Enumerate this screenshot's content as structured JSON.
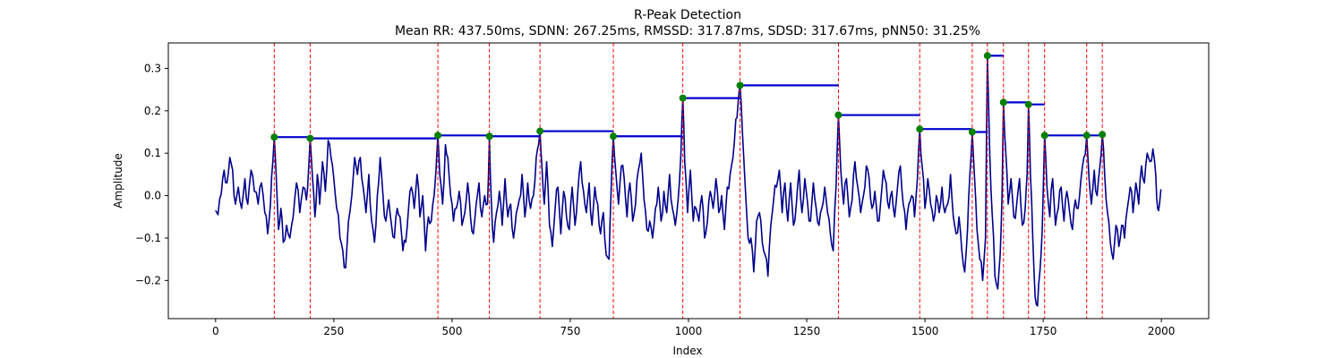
{
  "chart_data": {
    "type": "line",
    "title": "R-Peak Detection",
    "subtitle": "Mean RR: 437.50ms, SDNN: 267.25ms, RMSSD: 317.87ms, SDSD: 317.67ms, pNN50: 31.25%",
    "xlabel": "Index",
    "ylabel": "Amplitude",
    "xlim": [
      -100,
      2100
    ],
    "ylim": [
      -0.29,
      0.36
    ],
    "x_ticks": [
      0,
      250,
      500,
      750,
      1000,
      1250,
      1500,
      1750,
      2000
    ],
    "y_ticks": [
      -0.2,
      -0.1,
      0.0,
      0.1,
      0.2,
      0.3
    ],
    "y_tick_labels": [
      "−0.2",
      "−0.1",
      "0.0",
      "0.1",
      "0.2",
      "0.3"
    ],
    "grid": false,
    "signal": {
      "color": "#00008b",
      "length": 2000,
      "anchors": [
        [
          0,
          -0.035
        ],
        [
          5,
          -0.045
        ],
        [
          12,
          0.005
        ],
        [
          18,
          0.06
        ],
        [
          24,
          0.03
        ],
        [
          30,
          0.09
        ],
        [
          36,
          0.06
        ],
        [
          42,
          -0.02
        ],
        [
          48,
          0.02
        ],
        [
          55,
          -0.03
        ],
        [
          62,
          0.04
        ],
        [
          68,
          -0.02
        ],
        [
          75,
          0.06
        ],
        [
          82,
          0.01
        ],
        [
          90,
          -0.02
        ],
        [
          97,
          0.03
        ],
        [
          104,
          -0.04
        ],
        [
          110,
          -0.09
        ],
        [
          116,
          -0.02
        ],
        [
          121,
          0.08
        ],
        [
          124,
          0.138
        ],
        [
          128,
          0.05
        ],
        [
          133,
          -0.08
        ],
        [
          138,
          -0.03
        ],
        [
          143,
          -0.11
        ],
        [
          150,
          -0.07
        ],
        [
          157,
          -0.1
        ],
        [
          164,
          -0.05
        ],
        [
          171,
          0.03
        ],
        [
          178,
          -0.04
        ],
        [
          185,
          0.02
        ],
        [
          192,
          -0.01
        ],
        [
          197,
          0.07
        ],
        [
          200,
          0.135
        ],
        [
          205,
          0.04
        ],
        [
          210,
          -0.05
        ],
        [
          215,
          0.05
        ],
        [
          220,
          -0.02
        ],
        [
          226,
          0.08
        ],
        [
          232,
          0.01
        ],
        [
          238,
          0.13
        ],
        [
          244,
          0.09
        ],
        [
          250,
          0.04
        ],
        [
          256,
          -0.03
        ],
        [
          263,
          -0.1
        ],
        [
          269,
          -0.13
        ],
        [
          275,
          -0.17
        ],
        [
          281,
          -0.06
        ],
        [
          288,
          0.0
        ],
        [
          294,
          0.09
        ],
        [
          300,
          0.05
        ],
        [
          306,
          0.09
        ],
        [
          312,
          0.02
        ],
        [
          318,
          -0.04
        ],
        [
          324,
          0.05
        ],
        [
          330,
          -0.06
        ],
        [
          336,
          -0.11
        ],
        [
          342,
          0.0
        ],
        [
          348,
          0.09
        ],
        [
          354,
          0.0
        ],
        [
          360,
          -0.06
        ],
        [
          366,
          -0.01
        ],
        [
          372,
          -0.07
        ],
        [
          378,
          -0.1
        ],
        [
          384,
          -0.03
        ],
        [
          390,
          -0.05
        ],
        [
          396,
          -0.13
        ],
        [
          402,
          -0.11
        ],
        [
          408,
          -0.03
        ],
        [
          414,
          0.02
        ],
        [
          420,
          -0.03
        ],
        [
          426,
          0.05
        ],
        [
          432,
          -0.05
        ],
        [
          438,
          0.0
        ],
        [
          444,
          -0.13
        ],
        [
          450,
          -0.05
        ],
        [
          456,
          -0.06
        ],
        [
          462,
          0.0
        ],
        [
          466,
          0.06
        ],
        [
          470,
          0.142
        ],
        [
          474,
          0.05
        ],
        [
          480,
          -0.02
        ],
        [
          486,
          0.12
        ],
        [
          491,
          0.09
        ],
        [
          497,
          0.0
        ],
        [
          503,
          -0.06
        ],
        [
          509,
          -0.03
        ],
        [
          515,
          0.01
        ],
        [
          521,
          -0.07
        ],
        [
          527,
          -0.04
        ],
        [
          533,
          0.03
        ],
        [
          539,
          -0.05
        ],
        [
          545,
          -0.09
        ],
        [
          551,
          -0.02
        ],
        [
          557,
          0.03
        ],
        [
          563,
          -0.05
        ],
        [
          569,
          0.0
        ],
        [
          575,
          -0.02
        ],
        [
          579,
          0.14
        ],
        [
          583,
          -0.01
        ],
        [
          588,
          -0.11
        ],
        [
          594,
          -0.04
        ],
        [
          600,
          0.01
        ],
        [
          606,
          -0.07
        ],
        [
          612,
          0.04
        ],
        [
          618,
          -0.05
        ],
        [
          624,
          -0.02
        ],
        [
          630,
          -0.1
        ],
        [
          636,
          -0.04
        ],
        [
          642,
          -0.01
        ],
        [
          648,
          0.05
        ],
        [
          654,
          -0.05
        ],
        [
          660,
          0.03
        ],
        [
          666,
          -0.03
        ],
        [
          672,
          0.0
        ],
        [
          678,
          0.09
        ],
        [
          683,
          0.12
        ],
        [
          686,
          0.152
        ],
        [
          690,
          0.07
        ],
        [
          695,
          -0.02
        ],
        [
          700,
          0.08
        ],
        [
          706,
          -0.07
        ],
        [
          712,
          -0.12
        ],
        [
          718,
          -0.03
        ],
        [
          724,
          0.02
        ],
        [
          730,
          -0.09
        ],
        [
          736,
          0.01
        ],
        [
          742,
          -0.05
        ],
        [
          748,
          -0.08
        ],
        [
          754,
          0.02
        ],
        [
          760,
          -0.07
        ],
        [
          766,
          0.01
        ],
        [
          772,
          0.08
        ],
        [
          778,
          0.01
        ],
        [
          784,
          -0.04
        ],
        [
          790,
          0.03
        ],
        [
          796,
          -0.07
        ],
        [
          802,
          0.02
        ],
        [
          808,
          -0.02
        ],
        [
          814,
          -0.09
        ],
        [
          820,
          -0.04
        ],
        [
          826,
          -0.14
        ],
        [
          832,
          -0.15
        ],
        [
          836,
          0.0
        ],
        [
          841,
          0.14
        ],
        [
          846,
          0.06
        ],
        [
          852,
          -0.02
        ],
        [
          858,
          0.07
        ],
        [
          864,
          0.04
        ],
        [
          870,
          -0.05
        ],
        [
          876,
          0.03
        ],
        [
          882,
          -0.06
        ],
        [
          888,
          -0.02
        ],
        [
          894,
          0.06
        ],
        [
          900,
          0.1
        ],
        [
          906,
          -0.01
        ],
        [
          912,
          -0.08
        ],
        [
          918,
          -0.06
        ],
        [
          924,
          -0.1
        ],
        [
          930,
          -0.03
        ],
        [
          936,
          0.02
        ],
        [
          942,
          -0.06
        ],
        [
          948,
          0.01
        ],
        [
          954,
          -0.04
        ],
        [
          960,
          0.05
        ],
        [
          966,
          -0.03
        ],
        [
          972,
          -0.07
        ],
        [
          978,
          -0.01
        ],
        [
          984,
          0.1
        ],
        [
          988,
          0.23
        ],
        [
          992,
          0.08
        ],
        [
          998,
          -0.04
        ],
        [
          1004,
          0.06
        ],
        [
          1010,
          -0.06
        ],
        [
          1016,
          -0.03
        ],
        [
          1022,
          -0.06
        ],
        [
          1028,
          0.0
        ],
        [
          1034,
          -0.1
        ],
        [
          1040,
          -0.06
        ],
        [
          1046,
          0.01
        ],
        [
          1052,
          -0.03
        ],
        [
          1058,
          0.04
        ],
        [
          1064,
          -0.04
        ],
        [
          1070,
          0.0
        ],
        [
          1076,
          -0.08
        ],
        [
          1082,
          0.02
        ],
        [
          1088,
          0.05
        ],
        [
          1094,
          0.09
        ],
        [
          1100,
          0.18
        ],
        [
          1105,
          0.22
        ],
        [
          1109,
          0.26
        ],
        [
          1114,
          0.15
        ],
        [
          1120,
          0.02
        ],
        [
          1126,
          -0.1
        ],
        [
          1132,
          -0.1
        ],
        [
          1138,
          -0.18
        ],
        [
          1144,
          -0.06
        ],
        [
          1150,
          -0.04
        ],
        [
          1156,
          -0.11
        ],
        [
          1162,
          -0.14
        ],
        [
          1168,
          -0.19
        ],
        [
          1174,
          -0.07
        ],
        [
          1180,
          -0.01
        ],
        [
          1186,
          0.02
        ],
        [
          1192,
          0.06
        ],
        [
          1198,
          -0.04
        ],
        [
          1204,
          0.03
        ],
        [
          1210,
          -0.06
        ],
        [
          1216,
          0.03
        ],
        [
          1222,
          -0.07
        ],
        [
          1228,
          -0.02
        ],
        [
          1234,
          0.06
        ],
        [
          1240,
          -0.04
        ],
        [
          1246,
          0.04
        ],
        [
          1252,
          -0.02
        ],
        [
          1258,
          -0.06
        ],
        [
          1264,
          0.03
        ],
        [
          1270,
          -0.03
        ],
        [
          1276,
          -0.07
        ],
        [
          1282,
          -0.03
        ],
        [
          1288,
          0.02
        ],
        [
          1294,
          -0.04
        ],
        [
          1300,
          -0.09
        ],
        [
          1306,
          -0.13
        ],
        [
          1312,
          0.02
        ],
        [
          1317,
          0.19
        ],
        [
          1322,
          0.06
        ],
        [
          1328,
          -0.02
        ],
        [
          1334,
          0.04
        ],
        [
          1340,
          -0.05
        ],
        [
          1346,
          -0.01
        ],
        [
          1352,
          0.08
        ],
        [
          1358,
          0.02
        ],
        [
          1364,
          -0.04
        ],
        [
          1370,
          0.0
        ],
        [
          1376,
          0.07
        ],
        [
          1382,
          0.04
        ],
        [
          1388,
          -0.03
        ],
        [
          1394,
          0.01
        ],
        [
          1400,
          -0.06
        ],
        [
          1406,
          -0.02
        ],
        [
          1412,
          0.06
        ],
        [
          1418,
          0.03
        ],
        [
          1424,
          -0.03
        ],
        [
          1430,
          0.01
        ],
        [
          1436,
          -0.05
        ],
        [
          1442,
          0.02
        ],
        [
          1448,
          0.07
        ],
        [
          1454,
          -0.02
        ],
        [
          1460,
          -0.08
        ],
        [
          1466,
          -0.02
        ],
        [
          1472,
          0.0
        ],
        [
          1478,
          -0.05
        ],
        [
          1484,
          0.04
        ],
        [
          1489,
          0.157
        ],
        [
          1494,
          0.07
        ],
        [
          1500,
          -0.03
        ],
        [
          1506,
          0.04
        ],
        [
          1512,
          -0.02
        ],
        [
          1518,
          -0.06
        ],
        [
          1524,
          0.0
        ],
        [
          1530,
          -0.04
        ],
        [
          1536,
          0.02
        ],
        [
          1542,
          -0.04
        ],
        [
          1548,
          -0.02
        ],
        [
          1554,
          0.05
        ],
        [
          1560,
          -0.05
        ],
        [
          1566,
          -0.09
        ],
        [
          1572,
          -0.05
        ],
        [
          1578,
          -0.13
        ],
        [
          1584,
          -0.18
        ],
        [
          1590,
          -0.08
        ],
        [
          1595,
          0.05
        ],
        [
          1600,
          0.15
        ],
        [
          1605,
          0.04
        ],
        [
          1610,
          -0.08
        ],
        [
          1616,
          -0.15
        ],
        [
          1622,
          -0.2
        ],
        [
          1628,
          -0.1
        ],
        [
          1632,
          0.33
        ],
        [
          1637,
          0.1
        ],
        [
          1642,
          -0.04
        ],
        [
          1648,
          -0.19
        ],
        [
          1654,
          -0.22
        ],
        [
          1659,
          -0.14
        ],
        [
          1663,
          0.0
        ],
        [
          1666,
          0.22
        ],
        [
          1671,
          0.1
        ],
        [
          1676,
          -0.02
        ],
        [
          1682,
          0.04
        ],
        [
          1688,
          -0.05
        ],
        [
          1694,
          -0.02
        ],
        [
          1700,
          0.04
        ],
        [
          1706,
          -0.07
        ],
        [
          1712,
          -0.03
        ],
        [
          1716,
          0.05
        ],
        [
          1719,
          0.215
        ],
        [
          1723,
          0.05
        ],
        [
          1728,
          -0.1
        ],
        [
          1733,
          -0.24
        ],
        [
          1738,
          -0.26
        ],
        [
          1743,
          -0.18
        ],
        [
          1748,
          -0.08
        ],
        [
          1753,
          0.142
        ],
        [
          1758,
          0.02
        ],
        [
          1764,
          -0.05
        ],
        [
          1770,
          0.04
        ],
        [
          1776,
          -0.07
        ],
        [
          1782,
          -0.03
        ],
        [
          1788,
          0.02
        ],
        [
          1794,
          -0.06
        ],
        [
          1800,
          0.01
        ],
        [
          1806,
          -0.04
        ],
        [
          1812,
          -0.08
        ],
        [
          1818,
          -0.01
        ],
        [
          1824,
          -0.03
        ],
        [
          1830,
          0.04
        ],
        [
          1836,
          0.09
        ],
        [
          1842,
          0.142
        ],
        [
          1847,
          0.04
        ],
        [
          1852,
          -0.02
        ],
        [
          1858,
          0.06
        ],
        [
          1864,
          0.0
        ],
        [
          1870,
          0.07
        ],
        [
          1875,
          0.144
        ],
        [
          1880,
          0.05
        ],
        [
          1886,
          -0.04
        ],
        [
          1892,
          -0.11
        ],
        [
          1898,
          -0.15
        ],
        [
          1904,
          -0.07
        ],
        [
          1910,
          -0.12
        ],
        [
          1916,
          -0.07
        ],
        [
          1922,
          -0.1
        ],
        [
          1928,
          -0.03
        ],
        [
          1934,
          0.02
        ],
        [
          1940,
          -0.04
        ],
        [
          1946,
          0.03
        ],
        [
          1952,
          -0.02
        ],
        [
          1958,
          0.07
        ],
        [
          1964,
          0.03
        ],
        [
          1970,
          0.1
        ],
        [
          1976,
          0.08
        ],
        [
          1982,
          0.11
        ],
        [
          1988,
          0.05
        ],
        [
          1992,
          -0.03
        ],
        [
          1996,
          -0.02
        ],
        [
          1999,
          0.015
        ]
      ]
    },
    "peaks": {
      "marker_color": "#008000",
      "vline_color": "#ff0000",
      "indices": [
        124,
        200,
        470,
        579,
        686,
        841,
        988,
        1109,
        1317,
        1489,
        1600,
        1632,
        1666,
        1719,
        1753,
        1842,
        1875
      ],
      "amplitudes": [
        0.138,
        0.135,
        0.142,
        0.14,
        0.152,
        0.14,
        0.23,
        0.26,
        0.19,
        0.157,
        0.15,
        0.33,
        0.22,
        0.215,
        0.142,
        0.142,
        0.144
      ]
    },
    "rr_steps": {
      "color": "#0000cd"
    }
  }
}
